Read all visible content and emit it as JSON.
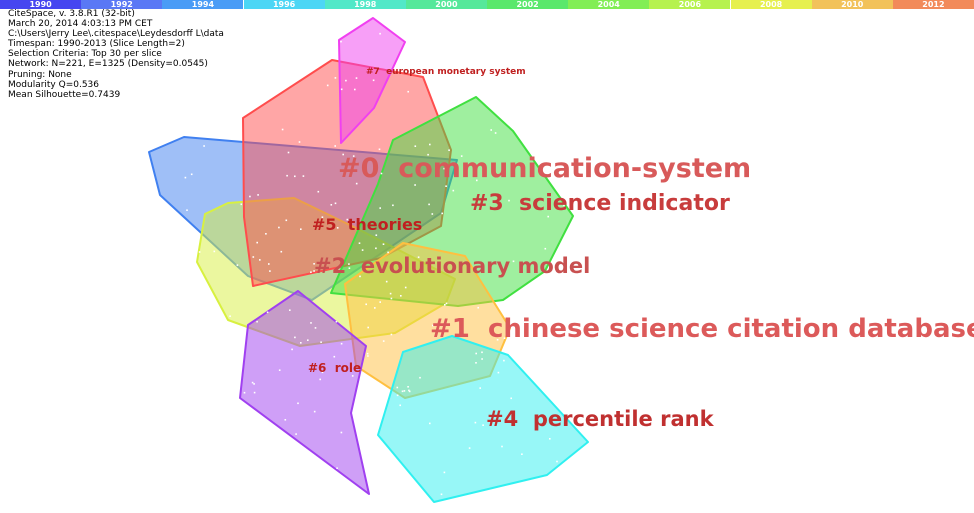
{
  "timeline": {
    "years": [
      "1990",
      "1992",
      "1994",
      "1996",
      "1998",
      "2000",
      "2002",
      "2004",
      "2006",
      "2008",
      "2010",
      "2012"
    ],
    "colors": [
      "#4646f0",
      "#5a78f5",
      "#4a9cf6",
      "#4dd6f5",
      "#52e8c8",
      "#55e89a",
      "#5ae86c",
      "#82ee55",
      "#b6f24e",
      "#e6f04e",
      "#f2c25a",
      "#f28a5a"
    ]
  },
  "info_lines": [
    "CiteSpace, v. 3.8.R1 (32-bit)",
    "March 20, 2014 4:03:13 PM CET",
    "C:\\Users\\Jerry Lee\\.citespace\\Leydesdorff L\\data",
    "Timespan: 1990-2013 (Slice Length=2)",
    "Selection Criteria: Top 30 per slice",
    "Network: N=221, E=1325 (Density=0.0545)",
    "Pruning: None",
    "Modularity Q=0.536",
    "Mean Silhouette=0.7439"
  ],
  "clusters": [
    {
      "id": "0",
      "label": "#0  communication-system",
      "color": "#ff4d4d",
      "text_color": "#d85a5a",
      "shape": "red"
    },
    {
      "id": "1",
      "label": "#1  chinese science citation database",
      "color": "#ffc040",
      "text_color": "#dc5a5a",
      "shape": "orange"
    },
    {
      "id": "2",
      "label": "#2  evolutionary model",
      "color": "#d8f040",
      "text_color": "#c85050",
      "shape": "yellow"
    },
    {
      "id": "3",
      "label": "#3  science indicator",
      "color": "#40e040",
      "text_color": "#c83c3c",
      "shape": "green"
    },
    {
      "id": "4",
      "label": "#4  percentile rank",
      "color": "#30f0f0",
      "text_color": "#c03030",
      "shape": "cyan"
    },
    {
      "id": "5",
      "label": "#5  theories",
      "color": "#4080f0",
      "text_color": "#c02020",
      "shape": "blue"
    },
    {
      "id": "6",
      "label": "#6  role",
      "color": "#a040f0",
      "text_color": "#c02020",
      "shape": "purple"
    },
    {
      "id": "7",
      "label": "#7  european monetary system",
      "color": "#f040f0",
      "text_color": "#c02020",
      "shape": "magenta"
    }
  ]
}
